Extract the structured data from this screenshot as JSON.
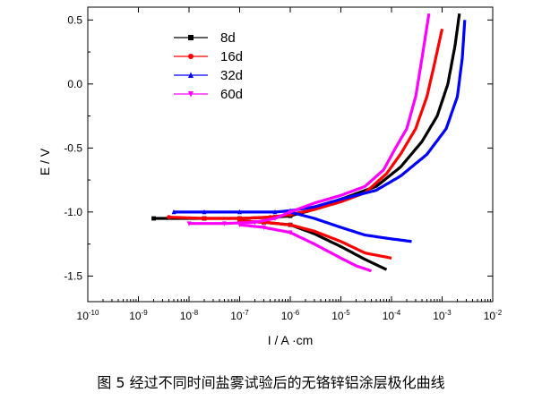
{
  "chart_data": {
    "type": "line",
    "xlabel": "I / A ·cm",
    "ylabel": "E / V",
    "x_scale": "log",
    "xlim": [
      1e-10,
      0.01
    ],
    "ylim": [
      -1.7,
      0.6
    ],
    "x_ticks": [
      1e-10,
      1e-09,
      1e-08,
      1e-07,
      1e-06,
      1e-05,
      0.0001,
      0.001,
      0.01
    ],
    "x_tick_labels": [
      "10-10",
      "10-9",
      "10-8",
      "10-7",
      "10-6",
      "10-5",
      "10-4",
      "10-3",
      "10-2"
    ],
    "y_ticks": [
      -1.5,
      -1.0,
      -0.5,
      0.0,
      0.5
    ],
    "y_tick_labels": [
      "-1.5",
      "-1.0",
      "-0.5",
      "0.0",
      "0.5"
    ],
    "legend_position": "top-left",
    "series": [
      {
        "name": "8d",
        "color": "#000000",
        "marker": "square",
        "anodic": [
          [
            2e-09,
            -1.05
          ],
          [
            2e-08,
            -1.05
          ],
          [
            1e-07,
            -1.05
          ],
          [
            5e-07,
            -1.04
          ],
          [
            1e-06,
            -1.03
          ],
          [
            3e-06,
            -0.98
          ],
          [
            1e-05,
            -0.9
          ],
          [
            5e-05,
            -0.8
          ],
          [
            0.00015,
            -0.65
          ],
          [
            0.0004,
            -0.45
          ],
          [
            0.0008,
            -0.25
          ],
          [
            0.0013,
            0.0
          ],
          [
            0.0018,
            0.3
          ],
          [
            0.0022,
            0.55
          ]
        ],
        "cathodic": [
          [
            1e-07,
            -1.07
          ],
          [
            3e-07,
            -1.08
          ],
          [
            1e-06,
            -1.1
          ],
          [
            3e-06,
            -1.17
          ],
          [
            1e-05,
            -1.27
          ],
          [
            3e-05,
            -1.37
          ],
          [
            8e-05,
            -1.45
          ]
        ]
      },
      {
        "name": "16d",
        "color": "#ff0000",
        "marker": "circle",
        "anodic": [
          [
            4e-09,
            -1.04
          ],
          [
            2e-08,
            -1.05
          ],
          [
            1e-07,
            -1.05
          ],
          [
            4e-07,
            -1.04
          ],
          [
            1e-06,
            -1.02
          ],
          [
            3e-06,
            -0.98
          ],
          [
            1e-05,
            -0.92
          ],
          [
            3e-05,
            -0.85
          ],
          [
            8e-05,
            -0.7
          ],
          [
            0.00015,
            -0.55
          ],
          [
            0.0003,
            -0.35
          ],
          [
            0.0005,
            -0.1
          ],
          [
            0.0007,
            0.15
          ],
          [
            0.001,
            0.43
          ]
        ],
        "cathodic": [
          [
            1e-07,
            -1.07
          ],
          [
            3e-07,
            -1.08
          ],
          [
            1e-06,
            -1.1
          ],
          [
            3e-06,
            -1.15
          ],
          [
            1e-05,
            -1.23
          ],
          [
            3e-05,
            -1.32
          ],
          [
            0.0001,
            -1.36
          ]
        ]
      },
      {
        "name": "32d",
        "color": "#0000ff",
        "marker": "triangle-up",
        "anodic": [
          [
            5e-09,
            -1.0
          ],
          [
            2e-08,
            -1.0
          ],
          [
            1e-07,
            -1.0
          ],
          [
            5e-07,
            -1.0
          ],
          [
            1e-06,
            -0.99
          ],
          [
            3e-06,
            -0.96
          ],
          [
            1e-05,
            -0.9
          ],
          [
            5e-05,
            -0.83
          ],
          [
            0.00015,
            -0.72
          ],
          [
            0.0005,
            -0.55
          ],
          [
            0.0012,
            -0.35
          ],
          [
            0.002,
            -0.1
          ],
          [
            0.0025,
            0.2
          ],
          [
            0.0028,
            0.5
          ]
        ],
        "cathodic": [
          [
            1e-06,
            -1.0
          ],
          [
            3e-06,
            -1.05
          ],
          [
            1e-05,
            -1.12
          ],
          [
            3e-05,
            -1.18
          ],
          [
            0.0001,
            -1.21
          ],
          [
            0.00025,
            -1.23
          ]
        ]
      },
      {
        "name": "60d",
        "color": "#ff00ff",
        "marker": "triangle-down",
        "anodic": [
          [
            1e-08,
            -1.09
          ],
          [
            5e-08,
            -1.09
          ],
          [
            2e-07,
            -1.08
          ],
          [
            5e-07,
            -1.05
          ],
          [
            1e-06,
            -1.0
          ],
          [
            3e-06,
            -0.93
          ],
          [
            1e-05,
            -0.87
          ],
          [
            3e-05,
            -0.8
          ],
          [
            7e-05,
            -0.67
          ],
          [
            0.00012,
            -0.5
          ],
          [
            0.0002,
            -0.35
          ],
          [
            0.0003,
            -0.1
          ],
          [
            0.0004,
            0.2
          ],
          [
            0.00055,
            0.55
          ]
        ],
        "cathodic": [
          [
            1e-07,
            -1.1
          ],
          [
            3e-07,
            -1.12
          ],
          [
            1e-06,
            -1.16
          ],
          [
            3e-06,
            -1.25
          ],
          [
            1e-05,
            -1.36
          ],
          [
            2e-05,
            -1.42
          ],
          [
            4e-05,
            -1.46
          ]
        ]
      }
    ]
  },
  "caption": "图 5 经过不同时间盐雾试验后的无铬锌铝涂层极化曲线"
}
